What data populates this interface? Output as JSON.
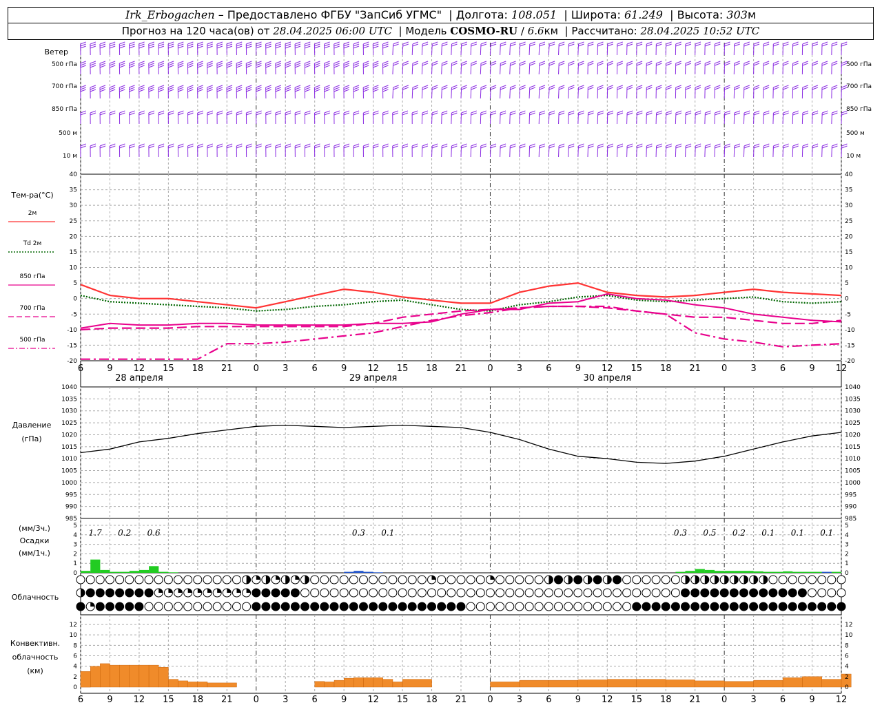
{
  "header": {
    "station": "Irk_Erbogachen",
    "dash": " – ",
    "provider": "Предоставлено ФГБУ \"ЗапСиб УГМС\"",
    "lon_label": "Долгота:",
    "lon": "108.051",
    "lat_label": "Широта:",
    "lat": "61.249",
    "alt_label": "Высота:",
    "alt": "303",
    "alt_unit": "м",
    "forecast_prefix": "Прогноз на 120 часа(ов) от",
    "forecast_time": "28.04.2025 06:00 UTC",
    "model_label": "Модель",
    "model_name": "COSMO-RU",
    "model_res": "6.6",
    "model_res_unit": "км",
    "computed_label": "Рассчитано:",
    "computed_time": "28.04.2025 10:52 UTC"
  },
  "labels": {
    "wind": "Ветер",
    "wind_levels": [
      "500 гПа",
      "700 гПа",
      "850 гПа",
      "500 м",
      "10 м"
    ],
    "temp_title": "Тем-ра(°C)",
    "temp_legend": [
      {
        "name": "2м",
        "color": "#ff3333",
        "style": "solid"
      },
      {
        "name": "Td 2м",
        "color": "#006600",
        "style": "dotted"
      },
      {
        "name": "850 гПа",
        "color": "#e8008c",
        "style": "solid"
      },
      {
        "name": "700 гПа",
        "color": "#e8008c",
        "style": "dash"
      },
      {
        "name": "500 гПа",
        "color": "#e8008c",
        "style": "dashdot"
      }
    ],
    "pressure": [
      "Давление",
      "(гПа)"
    ],
    "precip": [
      "(мм/3ч.)",
      "Осадки",
      "(мм/1ч.)"
    ],
    "cloud": "Облачность",
    "conv": [
      "Конвективн.",
      "облачность",
      "(км)"
    ]
  },
  "x_axis": {
    "hour_labels": [
      "6",
      "9",
      "12",
      "15",
      "18",
      "21",
      "0",
      "3",
      "6",
      "9",
      "12",
      "15",
      "18",
      "21",
      "0",
      "3",
      "6",
      "9",
      "12",
      "15",
      "18",
      "21",
      "0",
      "3",
      "6",
      "9",
      "12"
    ],
    "dates": [
      "28 апреля",
      "29 апреля",
      "30 апреля"
    ]
  },
  "chart_data": [
    {
      "type": "line",
      "title": "Тем-ра(°C)",
      "ylim": [
        -20,
        40
      ],
      "x_hours_from_start": [
        0,
        3,
        6,
        9,
        12,
        15,
        18,
        21,
        24,
        27,
        30,
        33,
        36,
        39,
        42,
        45,
        48,
        51,
        54,
        57,
        60,
        63,
        66,
        69,
        72,
        75,
        78
      ],
      "series": [
        {
          "name": "2м",
          "values": [
            4.5,
            1,
            0,
            0,
            -1,
            -2,
            -3,
            -1,
            1,
            3,
            2,
            0.5,
            -0.5,
            -1.5,
            -1.5,
            2,
            4,
            5,
            2,
            1,
            0.5,
            1,
            2,
            3,
            2,
            1.5,
            1
          ]
        },
        {
          "name": "Td 2м",
          "values": [
            1,
            -1,
            -1.5,
            -2,
            -2.5,
            -3,
            -4,
            -3.5,
            -2.5,
            -2,
            -1,
            -0.5,
            -2,
            -3.5,
            -4,
            -2,
            -1,
            0.5,
            1,
            -0.5,
            -1,
            -0.5,
            0,
            0.5,
            -1,
            -1.5,
            -1
          ]
        },
        {
          "name": "850 гПа",
          "values": [
            -9.5,
            -8,
            -8.5,
            -8.5,
            -8,
            -8,
            -8.5,
            -8.5,
            -8.5,
            -8.5,
            -8,
            -8,
            -7.5,
            -5,
            -3.5,
            -3.5,
            -1.5,
            -1,
            1.5,
            0,
            -0.5,
            -2,
            -3,
            -5,
            -6,
            -7,
            -7.5
          ]
        },
        {
          "name": "700 гПа",
          "values": [
            -10,
            -9.5,
            -9.5,
            -9.5,
            -9,
            -9,
            -9,
            -9,
            -9,
            -9,
            -8,
            -6,
            -5,
            -4,
            -3.5,
            -3,
            -2.5,
            -2.5,
            -3,
            -4,
            -5,
            -6,
            -6,
            -7,
            -8,
            -8,
            -7
          ]
        },
        {
          "name": "500 гПа",
          "values": [
            -19.5,
            -19.5,
            -19.5,
            -19.5,
            -19.5,
            -14.5,
            -14.5,
            -14,
            -13,
            -12,
            -11,
            -9,
            -7,
            -5.5,
            -4.5,
            -3,
            -2.5,
            -2.5,
            -2.5,
            -4,
            -5,
            -11,
            -13,
            -14,
            -15.5,
            -15,
            -14.5
          ]
        }
      ]
    },
    {
      "type": "line",
      "title": "Давление (гПа)",
      "ylim": [
        985,
        1040
      ],
      "x_hours_from_start": [
        0,
        3,
        6,
        9,
        12,
        15,
        18,
        21,
        24,
        27,
        30,
        33,
        36,
        39,
        42,
        45,
        48,
        51,
        54,
        57,
        60,
        63,
        66,
        69,
        72,
        75,
        78
      ],
      "series": [
        {
          "name": "Давление",
          "values": [
            1012.5,
            1014,
            1017,
            1018.5,
            1020.5,
            1022,
            1023.5,
            1024,
            1023.5,
            1023,
            1023.5,
            1024,
            1023.5,
            1023,
            1021,
            1018,
            1014,
            1011,
            1010,
            1008.5,
            1008,
            1009,
            1011,
            1014,
            1017,
            1019.5,
            1021
          ]
        }
      ]
    },
    {
      "type": "bar",
      "title": "Осадки (мм/1ч.)",
      "ylim": [
        0,
        5
      ],
      "x_hours_from_start": [
        1,
        2,
        3,
        4,
        5,
        6,
        7,
        8,
        9,
        10,
        28,
        29,
        30,
        31,
        62,
        63,
        64,
        65,
        66,
        67,
        68,
        69,
        70,
        71,
        72,
        73,
        74,
        75,
        76,
        77,
        78
      ],
      "series": [
        {
          "name": "осадки",
          "values": [
            0.2,
            1.4,
            0.3,
            0.1,
            0.1,
            0.2,
            0.3,
            0.7,
            0.1,
            0.05,
            0.1,
            0.2,
            0.1,
            0.05,
            0.1,
            0.2,
            0.4,
            0.3,
            0.2,
            0.2,
            0.2,
            0.2,
            0.15,
            0.1,
            0.1,
            0.15,
            0.1,
            0.1,
            0.1,
            0.1,
            0.1
          ]
        }
      ],
      "annotations_3h": [
        "1.7",
        "0.2",
        "0.6",
        "0.3",
        "0.1",
        "0.3",
        "0.5",
        "0.2",
        "0.1",
        "0.1",
        "0.1"
      ]
    },
    {
      "type": "bar",
      "title": "Конвективн. облачность (км)",
      "ylim": [
        0,
        13
      ],
      "x_hours_from_start": [
        0,
        1,
        2,
        3,
        4,
        5,
        6,
        7,
        8,
        9,
        10,
        11,
        12,
        13,
        24,
        25,
        26,
        27,
        28,
        29,
        30,
        31,
        32,
        33,
        42,
        45,
        48,
        51,
        54,
        57,
        60,
        63,
        66,
        69,
        72,
        74,
        76,
        78
      ],
      "series": [
        {
          "name": "верхняя граница",
          "values": [
            3,
            4,
            4.5,
            4.2,
            4.2,
            4.2,
            4.2,
            4.2,
            3.8,
            1.5,
            1.2,
            1,
            1,
            0.8,
            1.1,
            1,
            1.3,
            1.7,
            1.8,
            1.8,
            1.8,
            1.5,
            1,
            1.5,
            1,
            1.3,
            1.3,
            1.4,
            1.5,
            1.5,
            1.4,
            1.2,
            1.1,
            1.3,
            1.8,
            2,
            1.5,
            2.5
          ]
        }
      ]
    }
  ]
}
